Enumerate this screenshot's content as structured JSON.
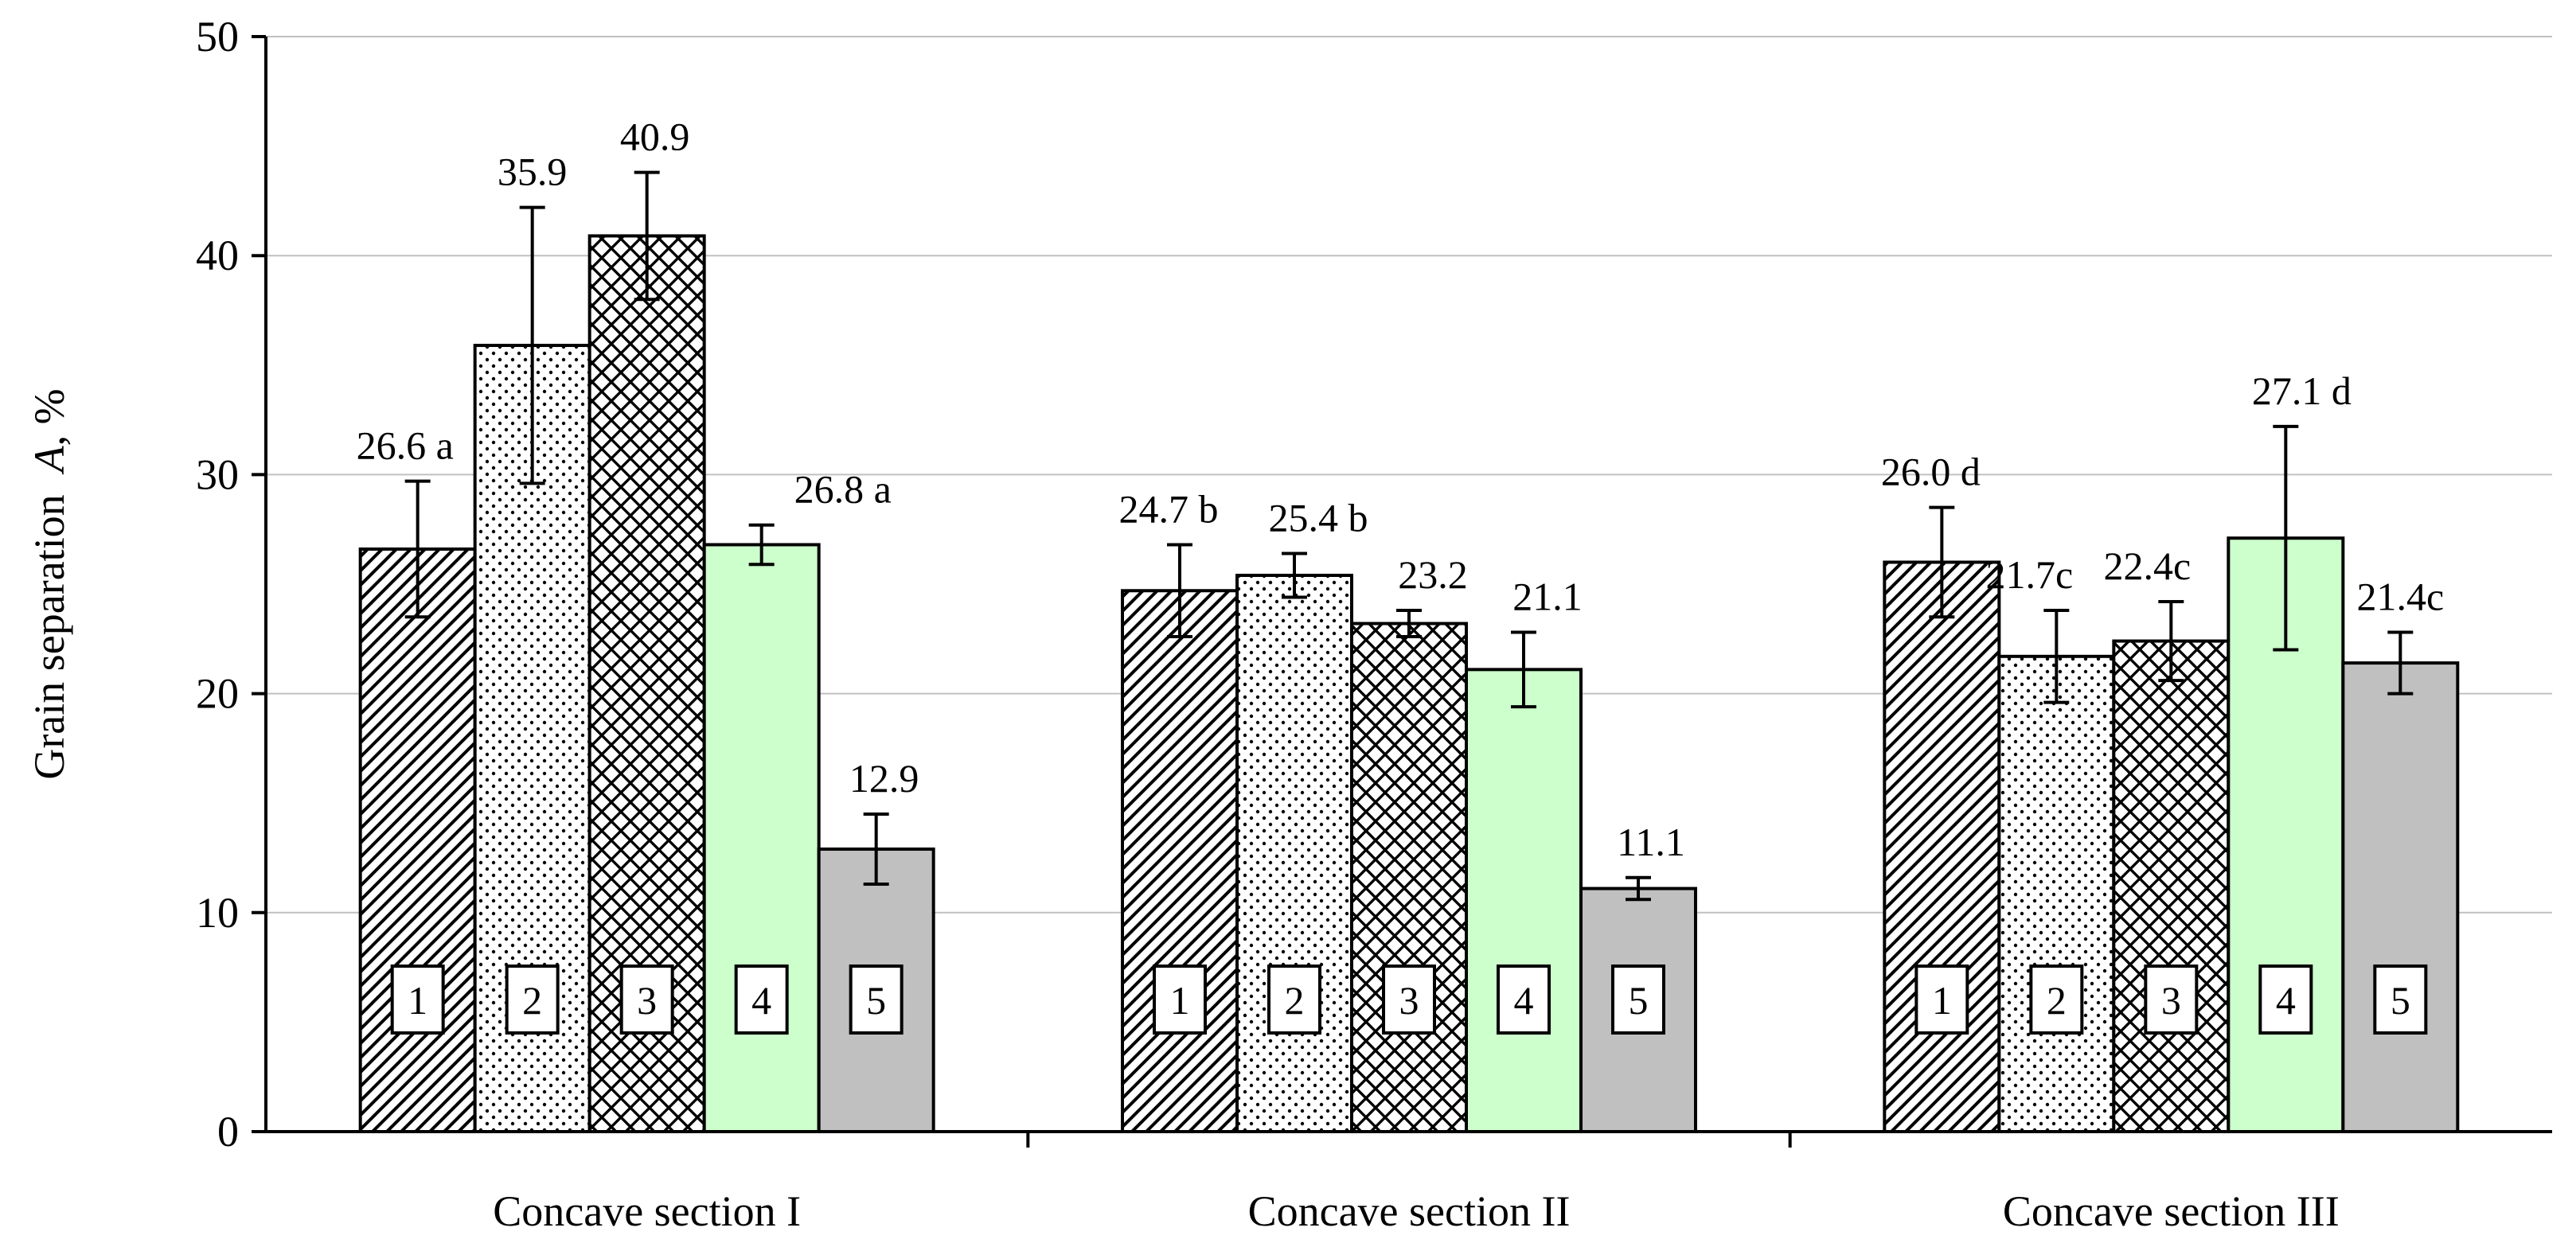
{
  "chart_data": {
    "type": "bar",
    "title": "",
    "xlabel": "",
    "ylabel": "Grain separation",
    "ylabel_symbol": "A",
    "ylabel_unit": ", %",
    "ylim": [
      0,
      50
    ],
    "yticks": [
      "0",
      "10",
      "20",
      "30",
      "40",
      "50"
    ],
    "grid": true,
    "categories": [
      "Concave section I",
      "Concave section II",
      "Concave section III"
    ],
    "series": [
      {
        "name": "1",
        "pattern": "diagonal-hatch",
        "color": "#ffffff",
        "values": [
          26.6,
          24.7,
          26.0
        ],
        "errors": [
          3.1,
          2.1,
          2.5
        ],
        "labels": [
          "26.6 a",
          "24.7 b",
          "26.0 d"
        ]
      },
      {
        "name": "2",
        "pattern": "dots",
        "color": "#ffffff",
        "values": [
          35.9,
          25.4,
          21.7
        ],
        "errors": [
          6.3,
          1.0,
          2.1
        ],
        "labels": [
          "35.9",
          "25.4 b",
          "21.7c"
        ]
      },
      {
        "name": "3",
        "pattern": "crosshatch",
        "color": "#ffffff",
        "values": [
          40.9,
          23.2,
          22.4
        ],
        "errors": [
          2.9,
          0.6,
          1.8
        ],
        "labels": [
          "40.9",
          "23.2",
          "22.4c"
        ]
      },
      {
        "name": "4",
        "pattern": "solid",
        "color": "#ccffcc",
        "values": [
          26.8,
          21.1,
          27.1
        ],
        "errors": [
          0.9,
          1.7,
          5.1
        ],
        "labels": [
          "26.8 a",
          "21.1",
          "27.1 d"
        ]
      },
      {
        "name": "5",
        "pattern": "solid",
        "color": "#c0c0c0",
        "values": [
          12.9,
          11.1,
          21.4
        ],
        "errors": [
          1.6,
          0.5,
          1.4
        ],
        "labels": [
          "12.9",
          "11.1",
          "21.4c"
        ]
      }
    ]
  }
}
